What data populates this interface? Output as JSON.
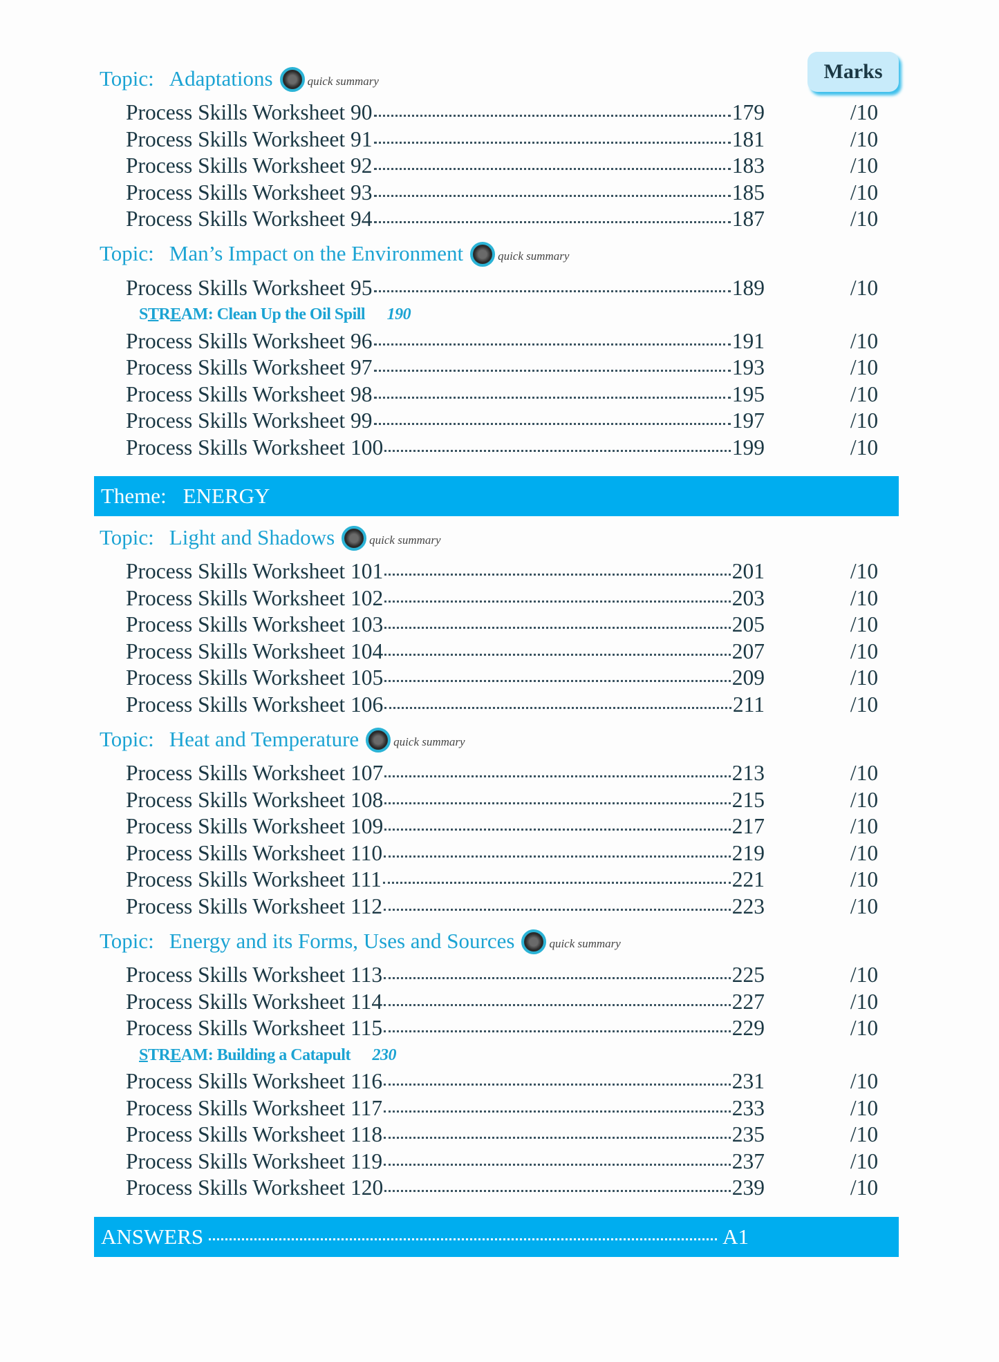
{
  "marks_header": "Marks",
  "quick_summary_label": "quick summary",
  "topic_prefix": "Topic:",
  "theme_prefix": "Theme:",
  "colors": {
    "accent": "#1ba3d3",
    "bar": "#00adef",
    "text": "#1b3844"
  },
  "sections": [
    {
      "kind": "topic",
      "name": "Adaptations",
      "items": [
        {
          "title": "Process Skills Worksheet 90",
          "page": "179",
          "mark": "/10"
        },
        {
          "title": "Process Skills Worksheet 91",
          "page": "181",
          "mark": "/10"
        },
        {
          "title": "Process Skills Worksheet 92",
          "page": "183",
          "mark": "/10"
        },
        {
          "title": "Process Skills Worksheet 93",
          "page": "185",
          "mark": "/10"
        },
        {
          "title": "Process Skills Worksheet 94",
          "page": "187",
          "mark": "/10"
        }
      ]
    },
    {
      "kind": "topic",
      "name": "Man’s Impact on the Environment",
      "items": [
        {
          "title": "Process Skills Worksheet 95",
          "page": "189",
          "mark": "/10"
        },
        {
          "stream": "STREAM: Clean Up the Oil Spill",
          "underlined": [
            1,
            3
          ],
          "page": "190"
        },
        {
          "title": "Process Skills Worksheet 96",
          "page": "191",
          "mark": "/10"
        },
        {
          "title": "Process Skills Worksheet 97",
          "page": "193",
          "mark": "/10"
        },
        {
          "title": "Process Skills Worksheet 98",
          "page": "195",
          "mark": "/10"
        },
        {
          "title": "Process Skills Worksheet 99",
          "page": "197",
          "mark": "/10"
        },
        {
          "title": "Process Skills Worksheet 100",
          "page": "199",
          "mark": "/10"
        }
      ]
    },
    {
      "kind": "theme",
      "name": "ENERGY"
    },
    {
      "kind": "topic",
      "name": "Light and Shadows",
      "items": [
        {
          "title": "Process Skills Worksheet 101",
          "page": "201",
          "mark": "/10"
        },
        {
          "title": "Process Skills Worksheet 102",
          "page": "203",
          "mark": "/10"
        },
        {
          "title": "Process Skills Worksheet 103",
          "page": "205",
          "mark": "/10"
        },
        {
          "title": "Process Skills Worksheet 104",
          "page": "207",
          "mark": "/10"
        },
        {
          "title": "Process Skills Worksheet 105",
          "page": "209",
          "mark": "/10"
        },
        {
          "title": "Process Skills Worksheet 106",
          "page": "211",
          "mark": "/10"
        }
      ]
    },
    {
      "kind": "topic",
      "name": "Heat and Temperature",
      "items": [
        {
          "title": "Process Skills Worksheet 107",
          "page": "213",
          "mark": "/10"
        },
        {
          "title": "Process Skills Worksheet 108",
          "page": "215",
          "mark": "/10"
        },
        {
          "title": "Process Skills Worksheet 109",
          "page": "217",
          "mark": "/10"
        },
        {
          "title": "Process Skills Worksheet 110",
          "page": "219",
          "mark": "/10"
        },
        {
          "title": "Process Skills Worksheet 111",
          "page": "221",
          "mark": "/10"
        },
        {
          "title": "Process Skills Worksheet 112",
          "page": "223",
          "mark": "/10"
        }
      ]
    },
    {
      "kind": "topic",
      "name": "Energy and its Forms, Uses and Sources",
      "items": [
        {
          "title": "Process Skills Worksheet 113",
          "page": "225",
          "mark": "/10"
        },
        {
          "title": "Process Skills Worksheet 114",
          "page": "227",
          "mark": "/10"
        },
        {
          "title": "Process Skills Worksheet 115",
          "page": "229",
          "mark": "/10"
        },
        {
          "stream": "STREAM: Building a Catapult",
          "underlined": [
            0,
            3
          ],
          "page": "230"
        },
        {
          "title": "Process Skills Worksheet 116",
          "page": "231",
          "mark": "/10"
        },
        {
          "title": "Process Skills Worksheet 117",
          "page": "233",
          "mark": "/10"
        },
        {
          "title": "Process Skills Worksheet 118",
          "page": "235",
          "mark": "/10"
        },
        {
          "title": "Process Skills Worksheet 119",
          "page": "237",
          "mark": "/10"
        },
        {
          "title": "Process Skills Worksheet 120",
          "page": "239",
          "mark": "/10"
        }
      ]
    },
    {
      "kind": "answers",
      "name": "ANSWERS",
      "page": "A1"
    }
  ]
}
